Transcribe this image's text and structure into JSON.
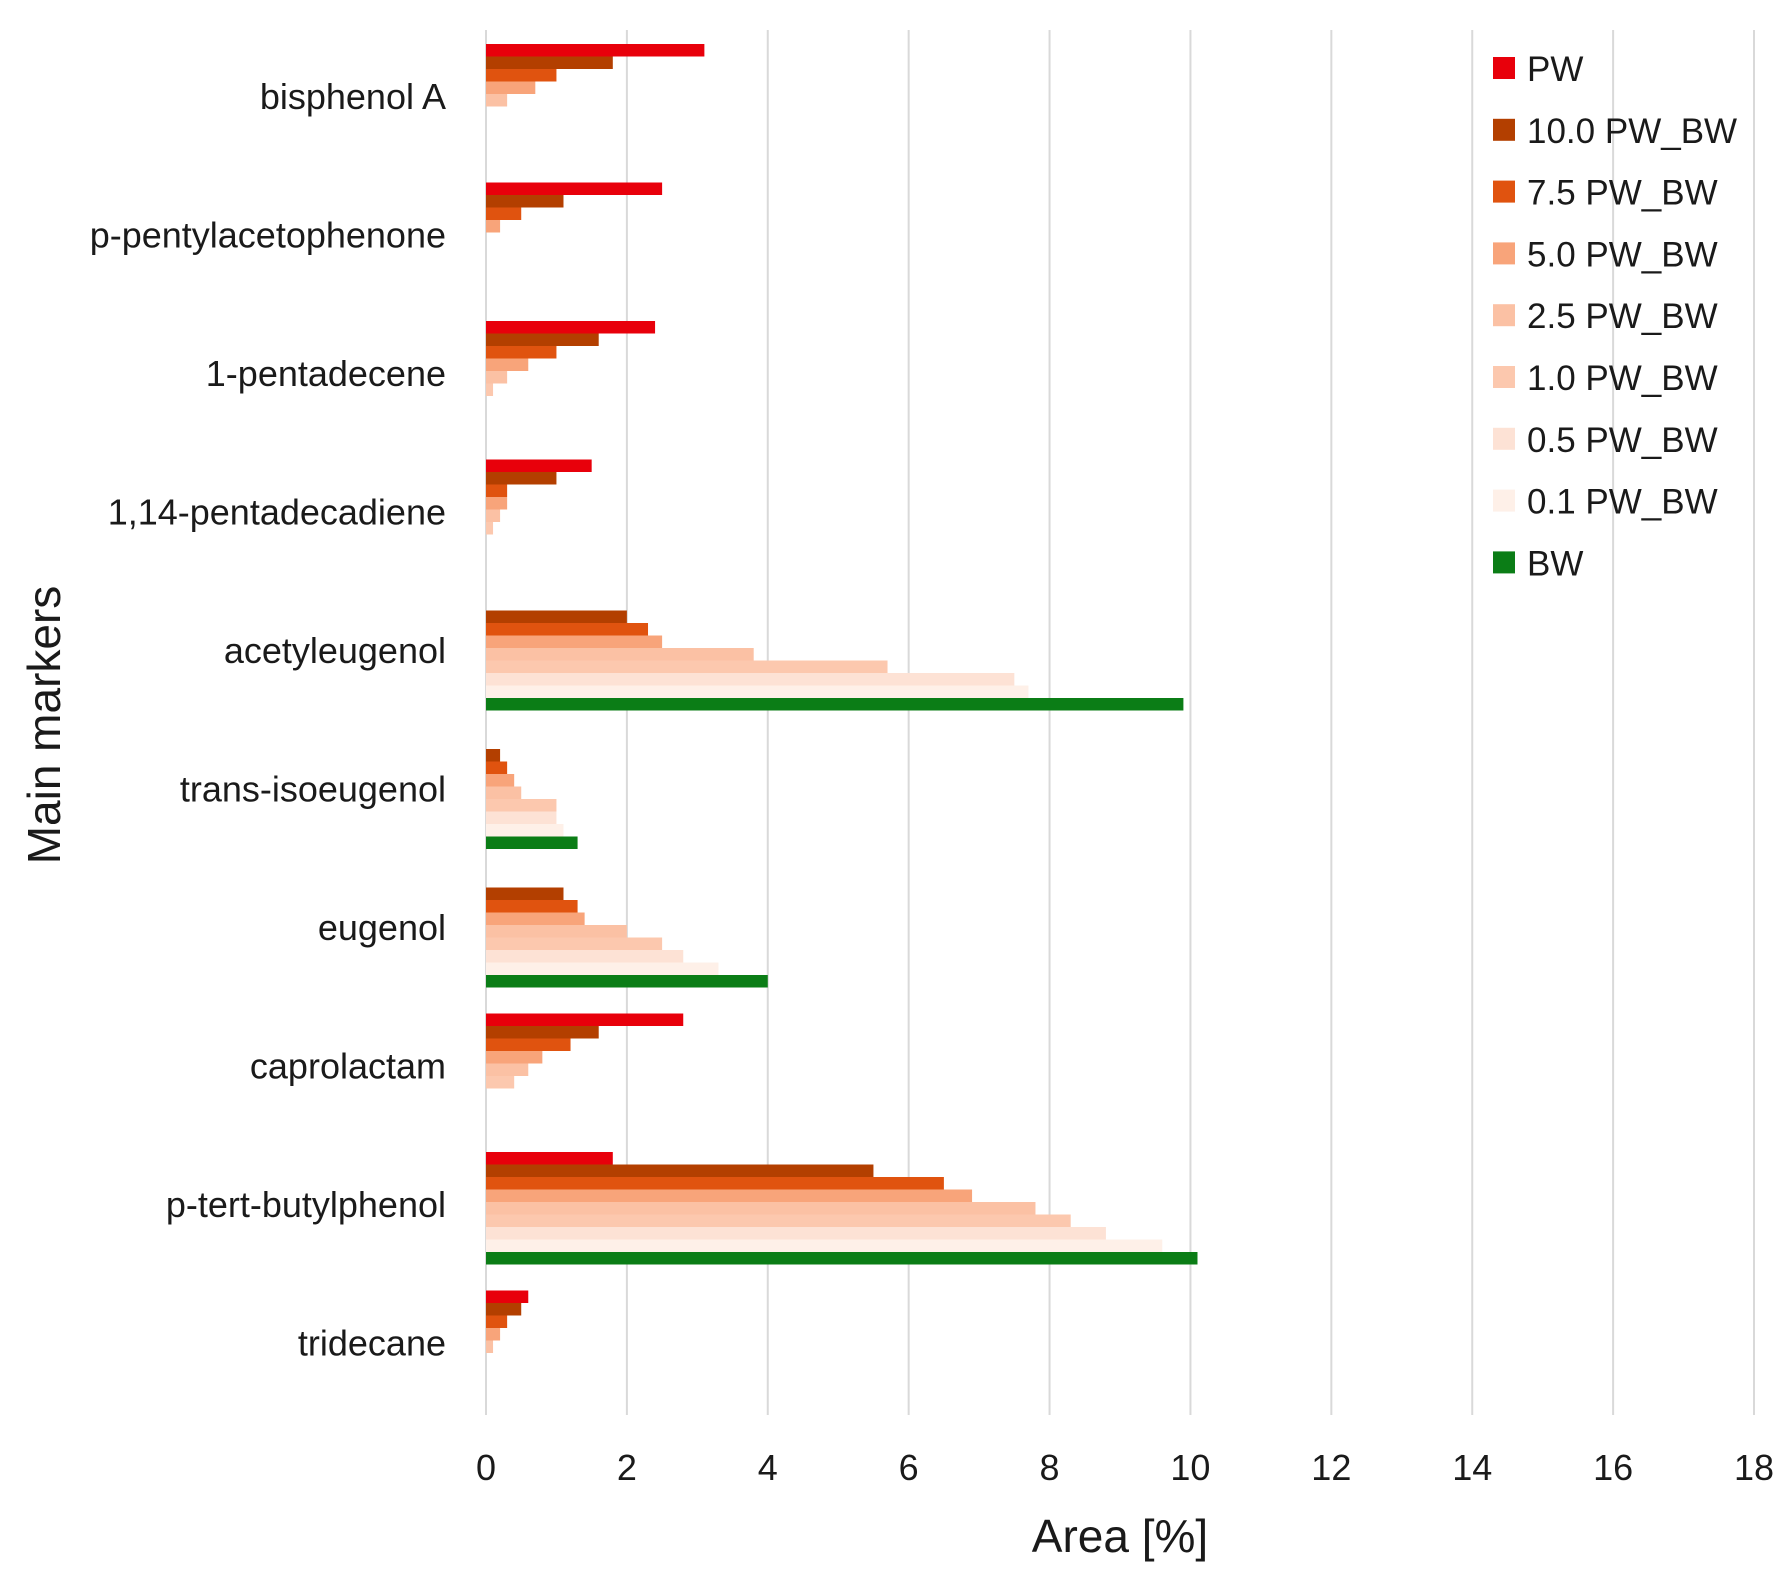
{
  "chart_data": {
    "type": "bar",
    "orientation": "horizontal",
    "title": "",
    "xlabel": "Area [%]",
    "ylabel": "Main markers",
    "xlim": [
      0,
      18
    ],
    "xticks": [
      0,
      2,
      4,
      6,
      8,
      10,
      12,
      14,
      16,
      18
    ],
    "grid": "vertical",
    "legend_position": "top-right",
    "categories": [
      "bisphenol A",
      "p-pentylacetophenone",
      "1-pentadecene",
      "1,14-pentadecadiene",
      "acetyleugenol",
      "trans-isoeugenol",
      "eugenol",
      "caprolactam",
      "p-tert-butylphenol",
      "tridecane"
    ],
    "series": [
      {
        "name": "PW",
        "color": "#e8000b",
        "values": [
          3.1,
          2.5,
          2.4,
          1.5,
          0,
          0,
          0,
          2.8,
          1.8,
          0.6
        ]
      },
      {
        "name": "10.0 PW_BW",
        "color": "#b33f00",
        "values": [
          1.8,
          1.1,
          1.6,
          1.0,
          2.0,
          0.2,
          1.1,
          1.6,
          5.5,
          0.5
        ]
      },
      {
        "name": "7.5 PW_BW",
        "color": "#e0530f",
        "values": [
          1.0,
          0.5,
          1.0,
          0.3,
          2.3,
          0.3,
          1.3,
          1.2,
          6.5,
          0.3
        ]
      },
      {
        "name": "5.0 PW_BW",
        "color": "#f8a47a",
        "values": [
          0.7,
          0.2,
          0.6,
          0.3,
          2.5,
          0.4,
          1.4,
          0.8,
          6.9,
          0.2
        ]
      },
      {
        "name": "2.5 PW_BW",
        "color": "#fbc1a4",
        "values": [
          0.3,
          0,
          0.3,
          0.2,
          3.8,
          0.5,
          2.0,
          0.6,
          7.8,
          0.1
        ]
      },
      {
        "name": "1.0 PW_BW",
        "color": "#fcc8ae",
        "values": [
          0,
          0,
          0.1,
          0.1,
          5.7,
          1.0,
          2.5,
          0.4,
          8.3,
          0
        ]
      },
      {
        "name": "0.5 PW_BW",
        "color": "#fde2d5",
        "values": [
          0,
          0,
          0,
          0,
          7.5,
          1.0,
          2.8,
          0,
          8.8,
          0
        ]
      },
      {
        "name": "0.1 PW_BW",
        "color": "#fef0e8",
        "values": [
          0,
          0,
          0,
          0,
          7.7,
          1.1,
          3.3,
          0,
          9.6,
          0
        ]
      },
      {
        "name": "BW",
        "color": "#0b7d16",
        "values": [
          0,
          0,
          0,
          0,
          9.9,
          1.3,
          4.0,
          0,
          10.1,
          0
        ]
      }
    ]
  }
}
